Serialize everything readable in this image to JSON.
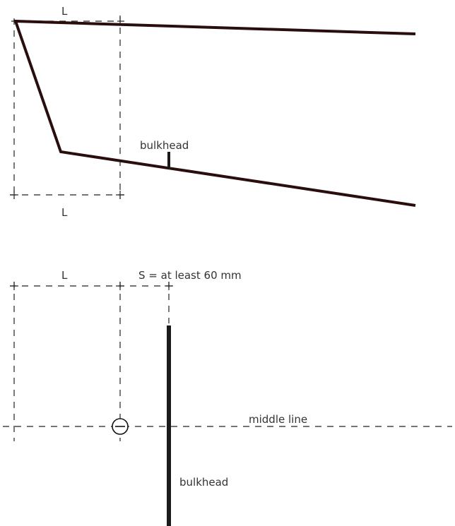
{
  "top_view": {
    "length_label_top": "L",
    "length_label_bottom": "L",
    "bulkhead_label": "bulkhead"
  },
  "bottom_view": {
    "length_label": "L",
    "spacing_label": "S = at least 60 mm",
    "middle_line_label": "middle line",
    "bulkhead_label": "bulkhead"
  },
  "colors": {
    "hull_line": "#2a0d0d",
    "bulkhead_line": "#1a1a1a",
    "dashed_line": "#222222",
    "text": "#333333"
  }
}
